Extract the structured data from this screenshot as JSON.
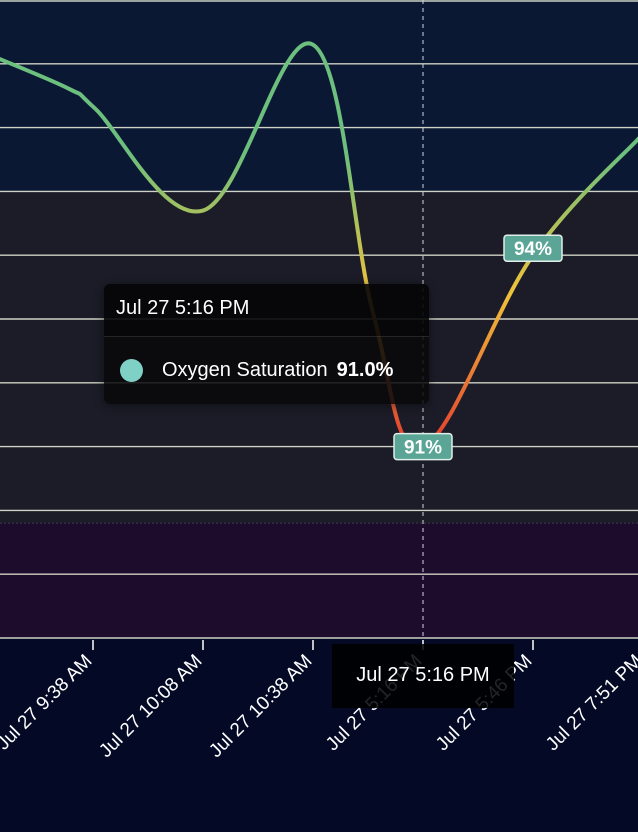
{
  "chart_data": {
    "type": "line",
    "series": [
      {
        "name": "Oxygen Saturation",
        "color": "#7fd1c6",
        "points": [
          {
            "x": "Jul 27 9:05 AM",
            "y": 97.1
          },
          {
            "x": "Jul 27 9:30 AM",
            "y": 96.6
          },
          {
            "x": "Jul 27 9:45 AM",
            "y": 96.3
          },
          {
            "x": "Jul 27 10:08 AM",
            "y": 94.7
          },
          {
            "x": "Jul 27 10:38 AM",
            "y": 97.3
          },
          {
            "x": "Jul 27 5:00 PM",
            "y": 93.1
          },
          {
            "x": "Jul 27 5:16 PM",
            "y": 91.0
          },
          {
            "x": "Jul 27 5:46 PM",
            "y": 94.0
          },
          {
            "x": "Jul 27 7:51 PM",
            "y": 95.9
          }
        ]
      }
    ],
    "x_tick_labels": [
      "Jul 27 9:38 AM",
      "Jul 27 10:08 AM",
      "Jul 27 10:38 AM",
      "Jul 27 5:16 PM",
      "Jul 27 5:46 PM",
      "Jul 27 7:51 PM"
    ],
    "point_labels": [
      {
        "x": "Jul 27 5:16 PM",
        "text": "91%"
      },
      {
        "x": "Jul 27 5:46 PM",
        "text": "94%"
      }
    ],
    "y_range": [
      88,
      98
    ],
    "grid": true,
    "bands": [
      {
        "from": 95,
        "to": 98,
        "color": "#0a1834"
      },
      {
        "from": 89.8,
        "to": 95,
        "color": "#1c1c28"
      },
      {
        "from": 88,
        "to": 89.8,
        "color": "#1e0c2c"
      }
    ],
    "line_gradient": {
      "high": "#6cbf7c",
      "mid": "#f0c23a",
      "low": "#e23b2e"
    }
  },
  "tooltip": {
    "header": "Jul 27 5:16 PM",
    "series_name": "Oxygen Saturation",
    "value": "91.0%",
    "marker_color": "#7fd1c6"
  },
  "crosshair": {
    "x": "Jul 27 5:16 PM",
    "label": "Jul 27 5:16 PM"
  }
}
